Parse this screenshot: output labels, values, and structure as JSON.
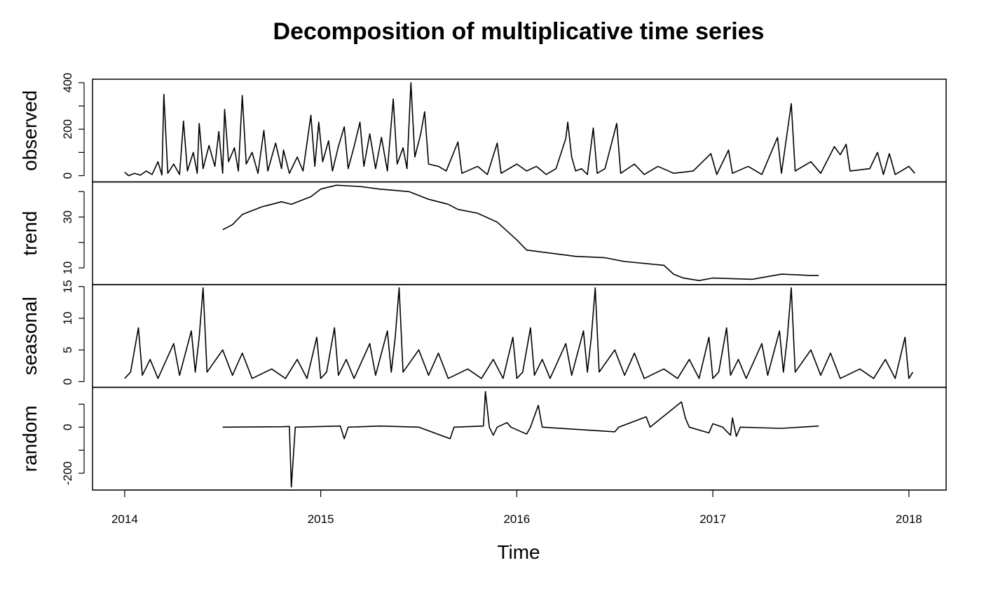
{
  "chart_data": {
    "type": "line",
    "title": "Decomposition of multiplicative time series",
    "xlabel": "Time",
    "xlim": [
      2013.836,
      2018.19
    ],
    "xticks": [
      2014,
      2015,
      2016,
      2017,
      2018
    ],
    "color": "#000000",
    "panels": [
      {
        "ylabel": "observed",
        "ylim": [
          -27,
          415
        ],
        "yticks": [
          0,
          {
            "value": 100,
            "label": null
          },
          200,
          {
            "value": 300,
            "label": null
          },
          400
        ],
        "x": [
          2014.0,
          2014.02,
          2014.05,
          2014.08,
          2014.11,
          2014.14,
          2014.17,
          2014.19,
          2014.2,
          2014.22,
          2014.25,
          2014.28,
          2014.3,
          2014.32,
          2014.35,
          2014.37,
          2014.38,
          2014.4,
          2014.43,
          2014.46,
          2014.48,
          2014.5,
          2014.51,
          2014.53,
          2014.56,
          2014.58,
          2014.6,
          2014.62,
          2014.65,
          2014.68,
          2014.71,
          2014.73,
          2014.77,
          2014.8,
          2014.81,
          2014.84,
          2014.88,
          2014.91,
          2014.95,
          2014.97,
          2014.99,
          2015.01,
          2015.04,
          2015.06,
          2015.09,
          2015.12,
          2015.14,
          2015.17,
          2015.2,
          2015.22,
          2015.25,
          2015.28,
          2015.31,
          2015.34,
          2015.37,
          2015.39,
          2015.42,
          2015.44,
          2015.46,
          2015.48,
          2015.51,
          2015.53,
          2015.55,
          2015.6,
          2015.64,
          2015.7,
          2015.72,
          2015.8,
          2015.85,
          2015.9,
          2015.92,
          2016.0,
          2016.05,
          2016.1,
          2016.15,
          2016.2,
          2016.25,
          2016.26,
          2016.28,
          2016.3,
          2016.33,
          2016.36,
          2016.39,
          2016.41,
          2016.45,
          2016.51,
          2016.53,
          2016.6,
          2016.65,
          2016.72,
          2016.8,
          2016.9,
          2016.99,
          2017.02,
          2017.08,
          2017.1,
          2017.18,
          2017.25,
          2017.33,
          2017.35,
          2017.4,
          2017.42,
          2017.5,
          2017.55,
          2017.62,
          2017.65,
          2017.68,
          2017.7,
          2017.8,
          2017.84,
          2017.87,
          2017.9,
          2017.93,
          2018.0,
          2018.03
        ],
        "values": [
          15,
          0,
          10,
          2,
          20,
          5,
          60,
          3,
          350,
          10,
          50,
          5,
          235,
          20,
          100,
          10,
          225,
          30,
          130,
          40,
          190,
          10,
          285,
          60,
          120,
          20,
          345,
          50,
          100,
          10,
          195,
          20,
          140,
          30,
          110,
          10,
          80,
          20,
          260,
          40,
          230,
          60,
          150,
          20,
          125,
          210,
          30,
          125,
          230,
          40,
          180,
          30,
          165,
          20,
          330,
          50,
          120,
          30,
          400,
          80,
          180,
          275,
          50,
          40,
          20,
          145,
          10,
          40,
          5,
          140,
          10,
          50,
          20,
          40,
          5,
          30,
          160,
          230,
          80,
          20,
          30,
          5,
          205,
          10,
          30,
          225,
          10,
          50,
          5,
          40,
          10,
          20,
          95,
          5,
          110,
          10,
          40,
          5,
          165,
          10,
          310,
          20,
          60,
          10,
          125,
          90,
          135,
          20,
          30,
          100,
          5,
          95,
          5,
          40,
          10
        ]
      },
      {
        "ylabel": "trend",
        "ylim": [
          3.4,
          43.8
        ],
        "yticks": [
          10,
          {
            "value": 20,
            "label": null
          },
          30,
          {
            "value": 40,
            "label": null
          }
        ],
        "x": [
          2014.5,
          2014.55,
          2014.6,
          2014.7,
          2014.8,
          2014.85,
          2014.95,
          2015.0,
          2015.08,
          2015.2,
          2015.3,
          2015.45,
          2015.55,
          2015.65,
          2015.7,
          2015.8,
          2015.9,
          2016.0,
          2016.05,
          2016.2,
          2016.3,
          2016.45,
          2016.55,
          2016.75,
          2016.8,
          2016.85,
          2016.93,
          2017.0,
          2017.2,
          2017.35,
          2017.5,
          2017.54
        ],
        "values": [
          25,
          27,
          31,
          34,
          36,
          35,
          38,
          41,
          42.5,
          42,
          41,
          40,
          37,
          35,
          33,
          31.5,
          28,
          21,
          17,
          15.5,
          14.5,
          14,
          12.5,
          11,
          7.5,
          6,
          5,
          6,
          5.5,
          7.5,
          7,
          7
        ]
      },
      {
        "ylabel": "seasonal",
        "ylim": [
          -0.9,
          15.3
        ],
        "yticks": [
          0,
          5,
          10,
          15
        ],
        "x": [
          2014.0,
          2014.03,
          2014.07,
          2014.09,
          2014.13,
          2014.17,
          2014.25,
          2014.28,
          2014.34,
          2014.36,
          2014.38,
          2014.4,
          2014.42,
          2014.5,
          2014.55,
          2014.6,
          2014.65,
          2014.75,
          2014.82,
          2014.88,
          2014.93,
          2014.98,
          2015.0,
          2015.03,
          2015.07,
          2015.09,
          2015.13,
          2015.17,
          2015.25,
          2015.28,
          2015.34,
          2015.36,
          2015.38,
          2015.4,
          2015.42,
          2015.5,
          2015.55,
          2015.6,
          2015.65,
          2015.75,
          2015.82,
          2015.88,
          2015.93,
          2015.98,
          2016.0,
          2016.03,
          2016.07,
          2016.09,
          2016.13,
          2016.17,
          2016.25,
          2016.28,
          2016.34,
          2016.36,
          2016.38,
          2016.4,
          2016.42,
          2016.5,
          2016.55,
          2016.6,
          2016.65,
          2016.75,
          2016.82,
          2016.88,
          2016.93,
          2016.98,
          2017.0,
          2017.03,
          2017.07,
          2017.09,
          2017.13,
          2017.17,
          2017.25,
          2017.28,
          2017.34,
          2017.36,
          2017.38,
          2017.4,
          2017.42,
          2017.5,
          2017.55,
          2017.6,
          2017.65,
          2017.75,
          2017.82,
          2017.88,
          2017.93,
          2017.98,
          2018.0,
          2018.02
        ],
        "values": [
          0.5,
          1.5,
          8.5,
          1,
          3.5,
          0.5,
          6,
          1,
          8,
          1.5,
          7,
          14.8,
          1.5,
          5,
          1,
          4.5,
          0.5,
          2,
          0.5,
          3.5,
          0.5,
          7,
          0.5,
          1.5,
          8.5,
          1,
          3.5,
          0.5,
          6,
          1,
          8,
          1.5,
          7,
          14.8,
          1.5,
          5,
          1,
          4.5,
          0.5,
          2,
          0.5,
          3.5,
          0.5,
          7,
          0.5,
          1.5,
          8.5,
          1,
          3.5,
          0.5,
          6,
          1,
          8,
          1.5,
          7,
          14.8,
          1.5,
          5,
          1,
          4.5,
          0.5,
          2,
          0.5,
          3.5,
          0.5,
          7,
          0.5,
          1.5,
          8.5,
          1,
          3.5,
          0.5,
          6,
          1,
          8,
          1.5,
          7,
          14.8,
          1.5,
          5,
          1,
          4.5,
          0.5,
          2,
          0.5,
          3.5,
          0.5,
          7,
          0.5,
          1.5
        ]
      },
      {
        "ylabel": "random",
        "ylim": [
          -273,
          173
        ],
        "yticks": [
          -200,
          {
            "value": -100,
            "label": null
          },
          0,
          {
            "value": 100,
            "label": null
          }
        ],
        "x": [
          2014.5,
          2014.8,
          2014.84,
          2014.85,
          2014.87,
          2015.1,
          2015.12,
          2015.14,
          2015.3,
          2015.5,
          2015.66,
          2015.68,
          2015.83,
          2015.84,
          2015.86,
          2015.88,
          2015.9,
          2015.95,
          2015.97,
          2016.05,
          2016.07,
          2016.11,
          2016.13,
          2016.5,
          2016.52,
          2016.66,
          2016.68,
          2016.84,
          2016.86,
          2016.88,
          2016.98,
          2017.0,
          2017.05,
          2017.09,
          2017.1,
          2017.12,
          2017.14,
          2017.35,
          2017.54
        ],
        "values": [
          0,
          2,
          3,
          -260,
          0,
          5,
          -50,
          0,
          5,
          0,
          -50,
          0,
          5,
          155,
          0,
          -35,
          0,
          20,
          0,
          -30,
          0,
          95,
          0,
          -20,
          0,
          45,
          0,
          110,
          40,
          0,
          -25,
          15,
          0,
          -35,
          40,
          -40,
          0,
          -5,
          5
        ]
      }
    ]
  }
}
